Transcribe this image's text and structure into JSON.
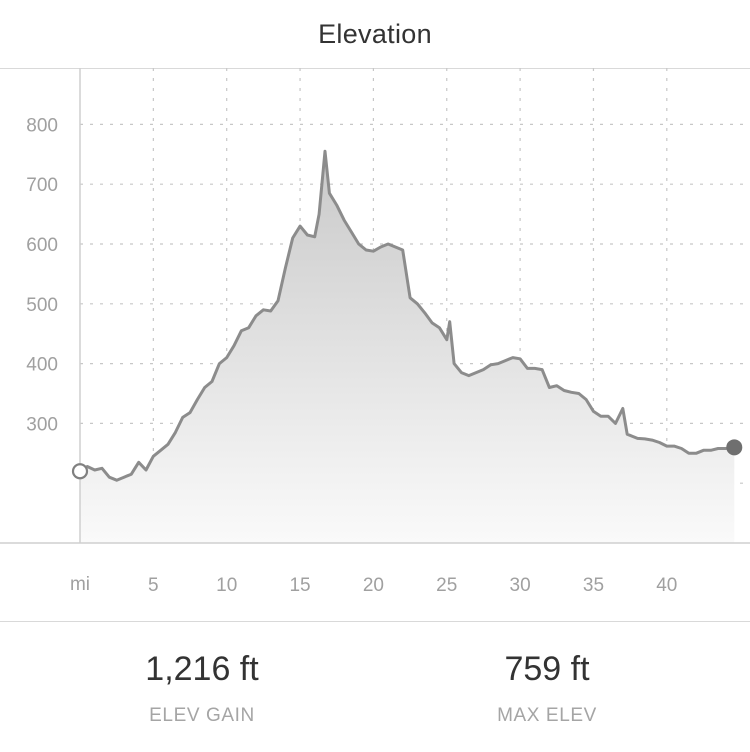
{
  "header": {
    "title": "Elevation"
  },
  "chart_data": {
    "type": "area",
    "xlabel": "mi",
    "ylabel": "",
    "xlim": [
      0,
      45
    ],
    "ylim": [
      100,
      900
    ],
    "x_ticks": [
      5,
      10,
      15,
      20,
      25,
      30,
      35,
      40
    ],
    "y_ticks": [
      300,
      400,
      500,
      600,
      700,
      800
    ],
    "grid": true,
    "start_marker": "hollow-circle",
    "end_marker": "filled-circle",
    "colors": {
      "line": "#8c8c8c",
      "fill_top": "#c9c9c9",
      "fill_bottom": "#fafafa",
      "grid": "#c7c7c7"
    },
    "series": [
      {
        "x": [
          0,
          0.5,
          1,
          1.5,
          2,
          2.5,
          3,
          3.5,
          4,
          4.5,
          5,
          5.5,
          6,
          6.5,
          7,
          7.5,
          8,
          8.5,
          9,
          9.5,
          10,
          10.5,
          11,
          11.5,
          12,
          12.5,
          13,
          13.5,
          14,
          14.5,
          15,
          15.5,
          16,
          16.3,
          16.7,
          17,
          17.5,
          18,
          18.5,
          19,
          19.5,
          20,
          20.5,
          21,
          21.5,
          22,
          22.5,
          23,
          23.5,
          24,
          24.5,
          25,
          25.2,
          25.5,
          26,
          26.5,
          27,
          27.5,
          28,
          28.5,
          29,
          29.5,
          30,
          30.5,
          31,
          31.5,
          32,
          32.5,
          33,
          33.5,
          34,
          34.5,
          35,
          35.5,
          36,
          36.5,
          37,
          37.3,
          37.7,
          38,
          38.5,
          39,
          39.5,
          40,
          40.5,
          41,
          41.5,
          42,
          42.5,
          43,
          43.5,
          44,
          44.6
        ],
        "y": [
          220,
          228,
          222,
          225,
          210,
          205,
          210,
          215,
          235,
          222,
          245,
          255,
          265,
          285,
          310,
          318,
          340,
          360,
          370,
          400,
          410,
          430,
          455,
          460,
          480,
          490,
          488,
          505,
          560,
          610,
          630,
          615,
          612,
          650,
          755,
          685,
          665,
          640,
          620,
          600,
          590,
          588,
          595,
          600,
          595,
          590,
          510,
          500,
          485,
          468,
          460,
          440,
          470,
          400,
          385,
          380,
          385,
          390,
          398,
          400,
          405,
          410,
          408,
          392,
          392,
          390,
          360,
          363,
          355,
          352,
          350,
          340,
          320,
          312,
          312,
          300,
          325,
          282,
          278,
          275,
          274,
          272,
          268,
          262,
          262,
          258,
          250,
          250,
          255,
          255,
          258,
          258,
          260
        ]
      }
    ]
  },
  "stats": [
    {
      "value": "1,216 ft",
      "label": "ELEV GAIN"
    },
    {
      "value": "759 ft",
      "label": "MAX ELEV"
    }
  ]
}
